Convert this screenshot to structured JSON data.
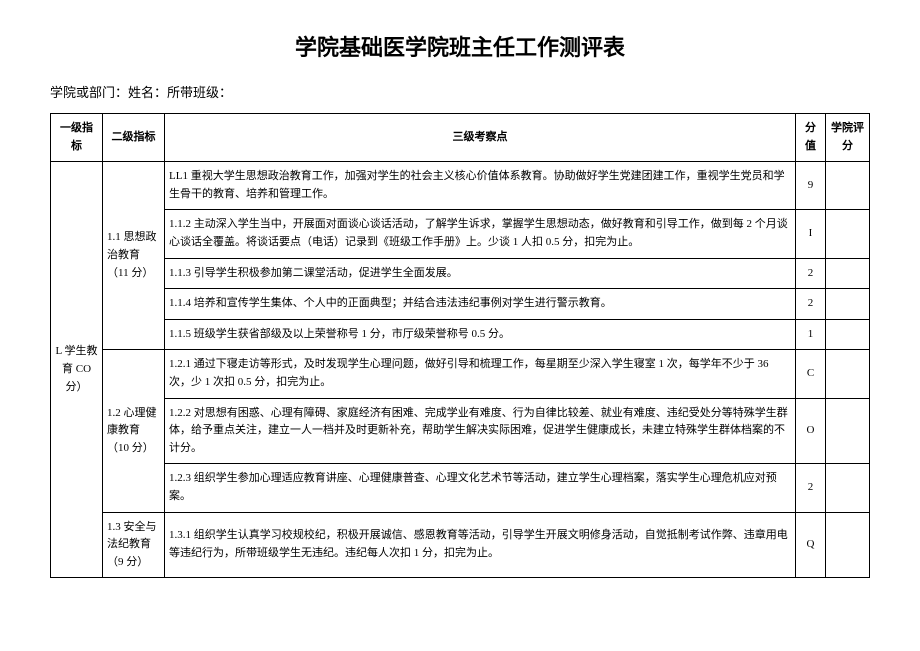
{
  "title": "学院基础医学院班主任工作测评表",
  "subtitle": "学院或部门：姓名：所带班级：",
  "headers": {
    "level1": "一级指标",
    "level2": "二级指标",
    "level3": "三级考察点",
    "score": "分值",
    "eval": "学院评分"
  },
  "level1": {
    "label": "L 学生教育 CO 分）"
  },
  "groups": [
    {
      "label": "1.1 思想政治教育（11 分）",
      "rows": [
        {
          "text": "LL1 重视大学生思想政治教育工作，加强对学生的社会主义核心价值体系教育。协助做好学生党建团建工作，重视学生党员和学生骨干的教育、培养和管理工作。",
          "score": "9"
        },
        {
          "text": "1.1.2 主动深入学生当中，开展面对面谈心谈话活动，了解学生诉求，掌握学生思想动态，做好教育和引导工作，做到每 2 个月谈心谈话全覆盖。将谈话要点（电话）记录到《班级工作手册》上。少谈 1 人扣 0.5 分，扣完为止。",
          "score": "I"
        },
        {
          "text": "1.1.3 引导学生积极参加第二课堂活动，促进学生全面发展。",
          "score": "2"
        },
        {
          "text": "1.1.4 培养和宣传学生集体、个人中的正面典型；并结合违法违纪事例对学生进行警示教育。",
          "score": "2"
        },
        {
          "text": "1.1.5 班级学生获省部级及以上荣誉称号 1 分，市厅级荣誉称号 0.5 分。",
          "score": "1"
        }
      ]
    },
    {
      "label": "1.2 心理健康教育（10 分）",
      "rows": [
        {
          "text": "1.2.1 通过下寝走访等形式，及时发现学生心理问题，做好引导和梳理工作，每星期至少深入学生寝室 1 次，每学年不少于 36 次，少 1 次扣 0.5 分，扣完为止。",
          "score": "C"
        },
        {
          "text": "1.2.2 对思想有困惑、心理有障碍、家庭经济有困难、完成学业有难度、行为自律比较差、就业有难度、违纪受处分等特殊学生群体，给予重点关注，建立一人一档并及时更新补充，帮助学生解决实际困难，促进学生健康成长，未建立特殊学生群体档案的不计分。",
          "score": "O"
        },
        {
          "text": "1.2.3 组织学生参加心理适应教育讲座、心理健康普查、心理文化艺术节等活动，建立学生心理档案，落实学生心理危机应对预案。",
          "score": "2"
        }
      ]
    },
    {
      "label": "1.3 安全与法纪教育（9 分）",
      "rows": [
        {
          "text": "1.3.1 组织学生认真学习校规校纪，积极开展诚信、感恩教育等活动，引导学生开展文明修身活动，自觉抵制考试作弊、违章用电等违纪行为，所带班级学生无违纪。违纪每人次扣 1 分，扣完为止。",
          "score": "Q"
        }
      ]
    }
  ]
}
